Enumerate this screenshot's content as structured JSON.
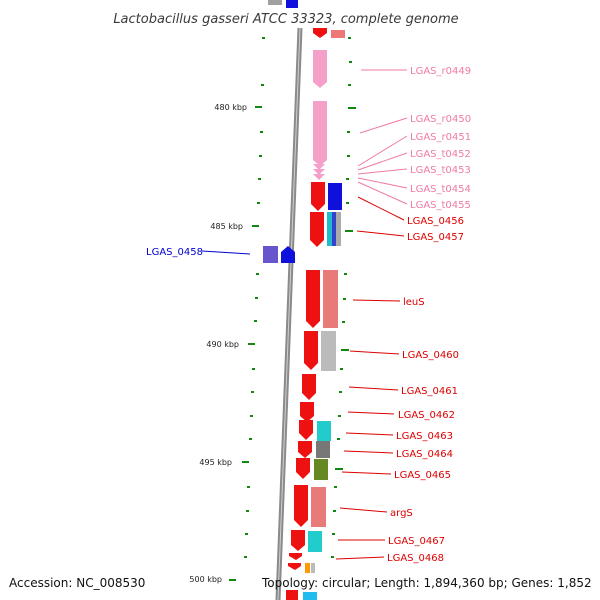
{
  "title": "Lactobacillus gasseri ATCC 33323, complete genome",
  "footer": {
    "accession": "Accession: NC_008530",
    "topology": "Topology: circular; Length: 1,894,360 bp; Genes: 1,852"
  },
  "colors": {
    "cds": "#ee1111",
    "rna": "#f5a0c8",
    "rna_label": "#f07aa6",
    "gene_label": "#dd0000",
    "reverse_label": "#0000cc",
    "backbone": "#8a8a8a",
    "tick": "#118811"
  },
  "scale": {
    "ticks": [
      {
        "label": "480 kbp"
      },
      {
        "label": "485 kbp"
      },
      {
        "label": "490 kbp"
      },
      {
        "label": "495 kbp"
      },
      {
        "label": "500 kbp"
      }
    ]
  },
  "labels": [
    {
      "text": "LGAS_r0449",
      "color": "#f07aa6"
    },
    {
      "text": "LGAS_r0450",
      "color": "#f07aa6"
    },
    {
      "text": "LGAS_r0451",
      "color": "#f07aa6"
    },
    {
      "text": "LGAS_t0452",
      "color": "#f07aa6"
    },
    {
      "text": "LGAS_t0453",
      "color": "#f07aa6"
    },
    {
      "text": "LGAS_t0454",
      "color": "#f07aa6"
    },
    {
      "text": "LGAS_t0455",
      "color": "#f07aa6"
    },
    {
      "text": "LGAS_0456",
      "color": "#dd0000"
    },
    {
      "text": "LGAS_0457",
      "color": "#dd0000"
    },
    {
      "text": "LGAS_0458",
      "color": "#0000cc"
    },
    {
      "text": "leuS",
      "color": "#dd0000"
    },
    {
      "text": "LGAS_0460",
      "color": "#dd0000"
    },
    {
      "text": "LGAS_0461",
      "color": "#dd0000"
    },
    {
      "text": "LGAS_0462",
      "color": "#dd0000"
    },
    {
      "text": "LGAS_0463",
      "color": "#dd0000"
    },
    {
      "text": "LGAS_0464",
      "color": "#dd0000"
    },
    {
      "text": "LGAS_0465",
      "color": "#dd0000"
    },
    {
      "text": "argS",
      "color": "#dd0000"
    },
    {
      "text": "LGAS_0467",
      "color": "#dd0000"
    },
    {
      "text": "LGAS_0468",
      "color": "#dd0000"
    }
  ]
}
